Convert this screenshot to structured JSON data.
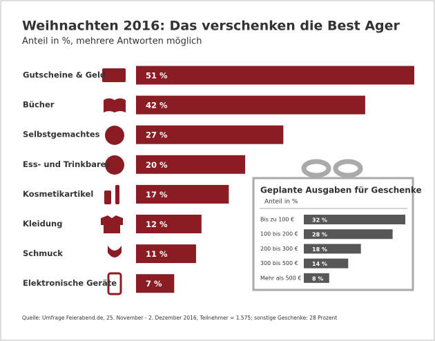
{
  "chart_data": [
    {
      "type": "bar",
      "orientation": "horizontal",
      "title": "Weihnachten 2016: Das verschenken die Best Ager",
      "subtitle": "Anteil in %, mehrere Antworten möglich",
      "categories": [
        "Gutscheine & Geld",
        "Bücher",
        "Selbstgemachtes",
        "Ess- und Trinkbares",
        "Kosmetikartikel",
        "Kleidung",
        "Schmuck",
        "Elektronische Geräte"
      ],
      "values": [
        51,
        42,
        27,
        20,
        17,
        12,
        11,
        7
      ],
      "value_labels": [
        "51 %",
        "42 %",
        "27 %",
        "20 %",
        "17 %",
        "12 %",
        "11 %",
        "7 %"
      ],
      "color": "#8c1c24"
    },
    {
      "type": "bar",
      "orientation": "horizontal",
      "title": "Geplante Ausgaben für Geschenke",
      "subtitle": "Anteil in %",
      "categories": [
        "Bis zu 100 €",
        "100 bis 200 €",
        "200 bis 300 €",
        "300 bis 500 €",
        "Mehr als 500 €"
      ],
      "values": [
        32,
        28,
        18,
        14,
        8
      ],
      "value_labels": [
        "32 %",
        "28 %",
        "18 %",
        "14 %",
        "8 %"
      ],
      "color": "#575757"
    }
  ],
  "source": "Quelle: Umfrage Feierabend.de, 25. November - 2. Dezember 2016, Teilnehmer = 1.575; sonstige Geschenke: 28 Prozent"
}
